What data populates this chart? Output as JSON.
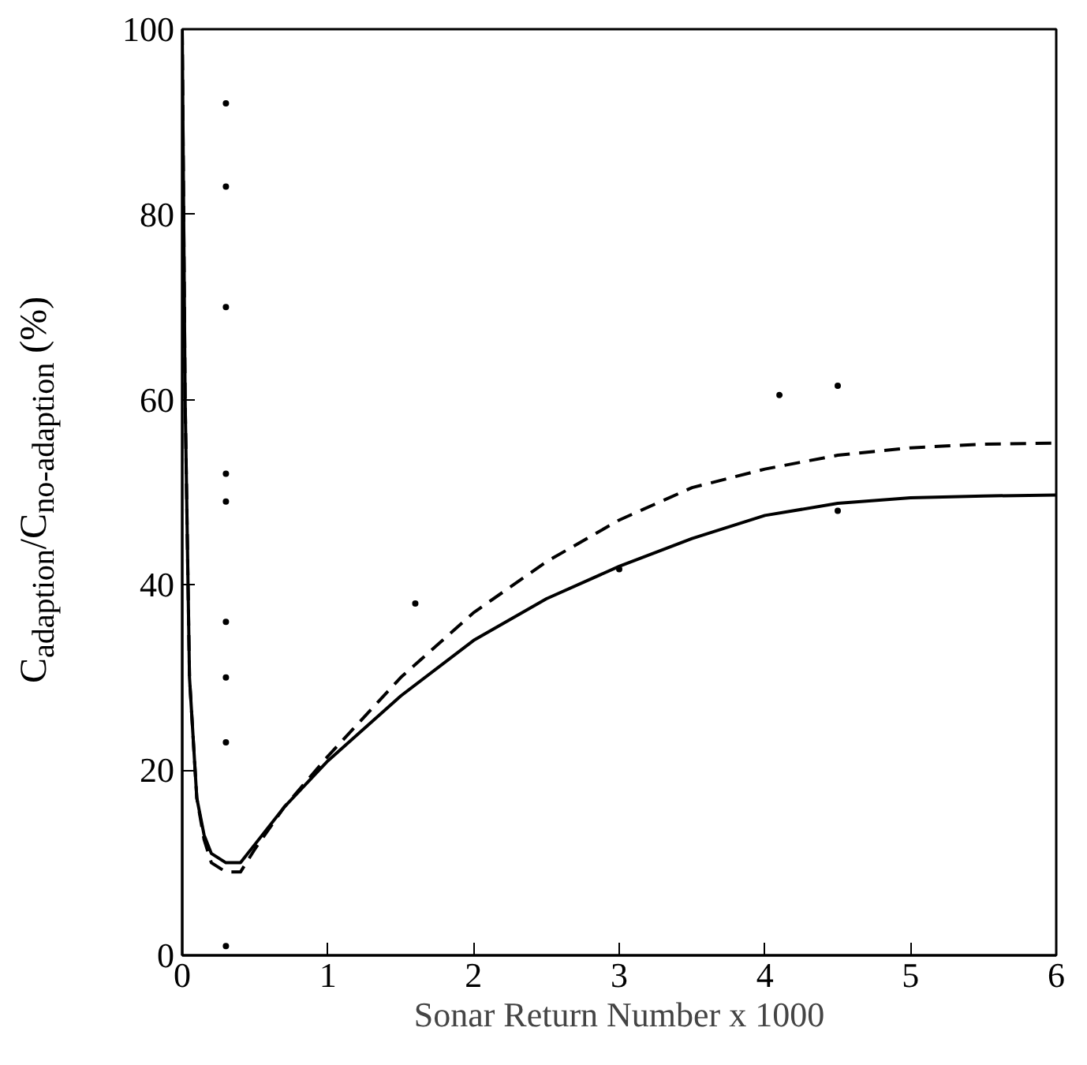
{
  "chart_data": {
    "type": "line",
    "xlabel": "Sonar Return Number x 1000",
    "ylabel": "C$_{adaption}$/C$_{no-adaption}$ (%)",
    "xlim": [
      0,
      6
    ],
    "ylim": [
      0,
      100
    ],
    "xticks": [
      0,
      1,
      2,
      3,
      4,
      5,
      6
    ],
    "yticks": [
      0,
      20,
      40,
      60,
      80,
      100
    ],
    "grid": false,
    "series": [
      {
        "line_style": "solid",
        "color": "#000000",
        "x": [
          0,
          0.02,
          0.05,
          0.1,
          0.15,
          0.2,
          0.3,
          0.4,
          0.5,
          0.7,
          1.0,
          1.5,
          2.0,
          2.5,
          3.0,
          3.5,
          4.0,
          4.5,
          5.0,
          5.5,
          6.0
        ],
        "values": [
          100,
          60,
          30,
          17,
          13,
          11,
          10,
          10,
          12,
          16,
          21,
          28,
          34,
          38.5,
          42,
          45,
          47.5,
          48.8,
          49.4,
          49.6,
          49.7
        ]
      },
      {
        "line_style": "dashed",
        "color": "#000000",
        "x": [
          0,
          0.02,
          0.05,
          0.1,
          0.15,
          0.2,
          0.3,
          0.4,
          0.5,
          0.7,
          1.0,
          1.5,
          2.0,
          2.5,
          3.0,
          3.5,
          4.0,
          4.5,
          5.0,
          5.5,
          6.0
        ],
        "values": [
          100,
          60,
          30,
          17,
          12.5,
          10,
          9,
          9,
          11.5,
          16,
          21.5,
          30,
          37,
          42.5,
          47,
          50.5,
          52.5,
          54,
          54.8,
          55.2,
          55.3
        ]
      },
      {
        "type": "scatter",
        "marker": "circle",
        "color": "#000000",
        "x": [
          0.3,
          0.3,
          0.3,
          0.3,
          0.3,
          0.3,
          0.3,
          0.3,
          0.3,
          1.6,
          3.0,
          4.1,
          4.5,
          4.5
        ],
        "values": [
          92,
          83,
          70,
          52,
          49,
          36,
          30,
          23,
          1,
          38,
          41.7,
          60.5,
          61.5,
          48
        ]
      }
    ]
  }
}
